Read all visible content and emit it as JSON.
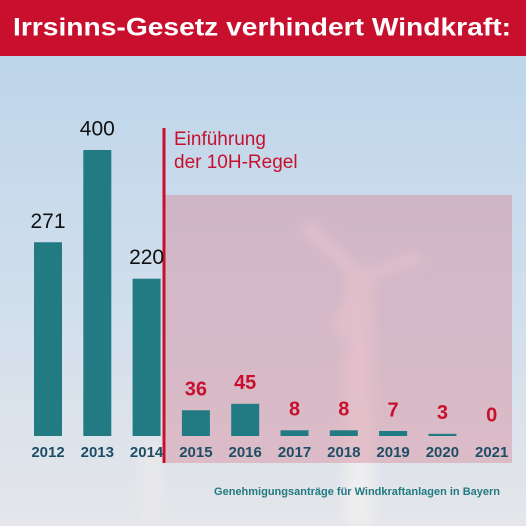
{
  "chart_data": {
    "type": "bar",
    "title": "Irrsinns-Gesetz verhindert Windkraft:",
    "annotation": [
      "Einführung",
      "der 10H-Regel"
    ],
    "source": "Genehmigungsanträge für Windkraftanlagen in Bayern",
    "categories": [
      "2012",
      "2013",
      "2014",
      "2015",
      "2016",
      "2017",
      "2018",
      "2019",
      "2020",
      "2021"
    ],
    "values": [
      271,
      400,
      220,
      36,
      45,
      8,
      8,
      7,
      3,
      0
    ],
    "color": "#227a82"
  }
}
